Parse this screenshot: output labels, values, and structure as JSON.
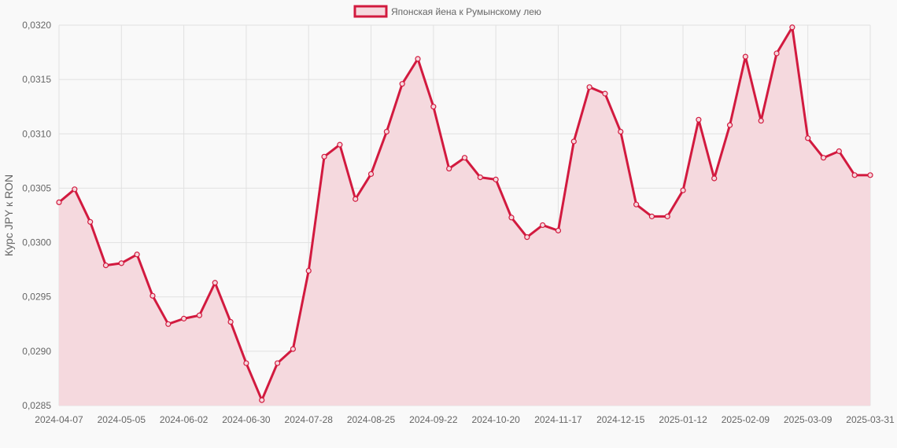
{
  "chart_data": {
    "type": "line",
    "ylabel": "Курс JPY к RON",
    "xlabel": "",
    "legend_position": "top-center",
    "grid": true,
    "ylim": [
      0.0285,
      0.032
    ],
    "y_ticks": [
      "0,0285",
      "0,0290",
      "0,0295",
      "0,0300",
      "0,0305",
      "0,0310",
      "0,0315",
      "0,0320"
    ],
    "x_ticks": [
      "2024-04-07",
      "2024-05-05",
      "2024-06-02",
      "2024-06-30",
      "2024-07-28",
      "2024-08-25",
      "2024-09-22",
      "2024-10-20",
      "2024-11-17",
      "2024-12-15",
      "2025-01-12",
      "2025-02-09",
      "2025-03-09",
      "2025-03-31"
    ],
    "colors": {
      "line": "#d21a3f",
      "fill": "#f5d9de",
      "grid": "#e1e1e1",
      "background": "#f9f9f9"
    },
    "series": [
      {
        "name": "Японская йена к Румынскому лею",
        "values": [
          0.03037,
          0.03049,
          0.03019,
          0.02979,
          0.02981,
          0.02989,
          0.02951,
          0.02925,
          0.0293,
          0.02933,
          0.02963,
          0.02927,
          0.02889,
          0.02855,
          0.02889,
          0.02902,
          0.02974,
          0.03079,
          0.0309,
          0.0304,
          0.03063,
          0.03102,
          0.03146,
          0.03169,
          0.03125,
          0.03068,
          0.03078,
          0.0306,
          0.03058,
          0.03023,
          0.03005,
          0.03016,
          0.03011,
          0.03093,
          0.03143,
          0.03137,
          0.03102,
          0.03035,
          0.03024,
          0.03024,
          0.03048,
          0.03113,
          0.03059,
          0.03108,
          0.03171,
          0.03112,
          0.03174,
          0.03198,
          0.03096,
          0.03078,
          0.03084,
          0.03062,
          0.03062
        ]
      }
    ]
  }
}
